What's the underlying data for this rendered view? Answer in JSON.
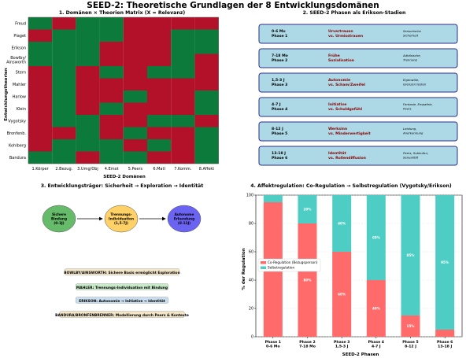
{
  "page_title": "SEED-2: Theoretische Grundlagen der 8 Entwicklungsdomänen",
  "colors": {
    "red": "#b3112a",
    "green": "#0c7a3b",
    "phase_fill": "#add8e6",
    "phase_border": "#2d2d8c",
    "co_reg": "#ff6b6b",
    "self_reg": "#4ecdc4"
  },
  "chart_data": [
    {
      "type": "heatmap",
      "title": "1. Domänen × Theorien Matrix (X = Relevanz)",
      "xlabel": "SEED-2 Domänen",
      "ylabel": "Entwicklungstheorien",
      "x": [
        "1.Körper",
        "2.Bezug.",
        "3.Umg/Obj",
        "4.Emot",
        "5.Peers",
        "6.Matl",
        "7.Komm.",
        "8.Affekt"
      ],
      "y": [
        "Freud",
        "Piaget",
        "Erikson",
        "Bowlby/ Ainsworth",
        "Stern",
        "Mahler",
        "Harlow",
        "Klein",
        "Vygotsky",
        "Bronfenb.",
        "Kohlberg",
        "Bandura"
      ],
      "values": [
        [
          1,
          0,
          1,
          1,
          0,
          0,
          0,
          0
        ],
        [
          0,
          1,
          1,
          1,
          0,
          0,
          1,
          1
        ],
        [
          1,
          1,
          1,
          0,
          0,
          0,
          1,
          1
        ],
        [
          1,
          1,
          1,
          0,
          0,
          0,
          1,
          0
        ],
        [
          0,
          1,
          0,
          1,
          0,
          1,
          1,
          0
        ],
        [
          0,
          1,
          0,
          0,
          0,
          0,
          0,
          0
        ],
        [
          0,
          1,
          0,
          0,
          1,
          0,
          0,
          1
        ],
        [
          0,
          1,
          0,
          1,
          0,
          0,
          0,
          1
        ],
        [
          0,
          1,
          1,
          0,
          0,
          1,
          1,
          0
        ],
        [
          0,
          0,
          1,
          0,
          1,
          0,
          0,
          1
        ],
        [
          0,
          1,
          1,
          1,
          0,
          1,
          0,
          1
        ],
        [
          1,
          1,
          0,
          1,
          1,
          0,
          0,
          1
        ]
      ]
    },
    {
      "type": "bar",
      "title": "4. Affektregulation: Co-Regulation → Selbstregulation (Vygotsky/Erikson)",
      "xlabel": "SEED-2 Phasen",
      "ylabel": "% der Regulation",
      "ylim": [
        0,
        100
      ],
      "categories": [
        [
          "Phase 1",
          "0-6 Mo"
        ],
        [
          "Phase 2",
          "7-18 Mo"
        ],
        [
          "Phase 3",
          "1,5-3 J"
        ],
        [
          "Phase 4",
          "4-7 J"
        ],
        [
          "Phase 5",
          "8-12 J"
        ],
        [
          "Phase 6",
          "13-18 J"
        ]
      ],
      "yticks": [
        0,
        20,
        40,
        60,
        80,
        100
      ],
      "series": [
        {
          "name": "Co-Regulation (Bezugsperson)",
          "values": [
            95,
            80,
            60,
            40,
            15,
            5
          ],
          "labels": [
            "95%",
            "80%",
            "60%",
            "40%",
            "15%",
            ""
          ]
        },
        {
          "name": "Selbstregulation",
          "values": [
            5,
            20,
            40,
            60,
            85,
            95
          ],
          "labels": [
            "",
            "20%",
            "40%",
            "60%",
            "85%",
            "95%"
          ]
        }
      ],
      "legend_position": "center-left"
    }
  ],
  "panel2": {
    "title": "2. SEED-2 Phasen als Erikson-Stadien",
    "phases": [
      {
        "age": "0-6 Mo",
        "phase": "Phase 1",
        "crisis1": "Urvertrauen",
        "crisis2": "vs. Urmisstrauen",
        "desc1": "Sensorische",
        "desc2": "Sicherheit"
      },
      {
        "age": "7-18 Mo",
        "phase": "Phase 2",
        "crisis1": "Frühe",
        "crisis2": "Sozialisation",
        "desc1": "Adhäsische,",
        "desc2": "Trennung"
      },
      {
        "age": "1,5-3 J",
        "phase": "Phase 3",
        "crisis1": "Autonomie",
        "crisis2": "vs. Scham/Zweifel",
        "desc1": "Eigenwille,",
        "desc2": "Grenzen testen"
      },
      {
        "age": "4-7 J",
        "phase": "Phase 4",
        "crisis1": "Initiative",
        "crisis2": "vs. Schuldgefühl",
        "desc1": "Fantasie, Empathie,",
        "desc2": "Peers"
      },
      {
        "age": "8-12 J",
        "phase": "Phase 5",
        "crisis1": "Werksinn",
        "crisis2": "vs. Minderwertigkeit",
        "desc1": "Leistung,",
        "desc2": "Anerkennung"
      },
      {
        "age": "13-18 J",
        "phase": "Phase 6",
        "crisis1": "Identität",
        "crisis2": "vs. Rollendiffusion",
        "desc1": "Peers, Subkultur,",
        "desc2": "Sexualität"
      }
    ]
  },
  "panel3": {
    "title": "3. Entwicklungsträger: Sicherheit → Exploration → Identität",
    "nodes": [
      {
        "l1": "Sichere",
        "l2": "Bindung",
        "l3": "(0-3J)",
        "color": "#66bb6a"
      },
      {
        "l1": "Trennungs-",
        "l2": "Individuation",
        "l3": "(1,5-7J)",
        "color": "#ffd166"
      },
      {
        "l1": "Autonome",
        "l2": "Erkundung",
        "l3": "(8-12J)",
        "color": "#6b63f2"
      }
    ],
    "notes": [
      {
        "text": "BOWLBY/AINSWORTH: Sichere Basis ermöglicht Exploration",
        "bg": "#f3e6c8"
      },
      {
        "text": "MAHLER: Trennungs-Individuation mit Bindung",
        "bg": "#c8eac8"
      },
      {
        "text": "ERIKSON: Autonomie → Initiative → Identität",
        "bg": "#c9dfef"
      },
      {
        "text": "BANDURA/BRONFENBRENNER: Modellierung durch Peers & Kontexte",
        "bg": "#f3e6c8"
      }
    ]
  }
}
